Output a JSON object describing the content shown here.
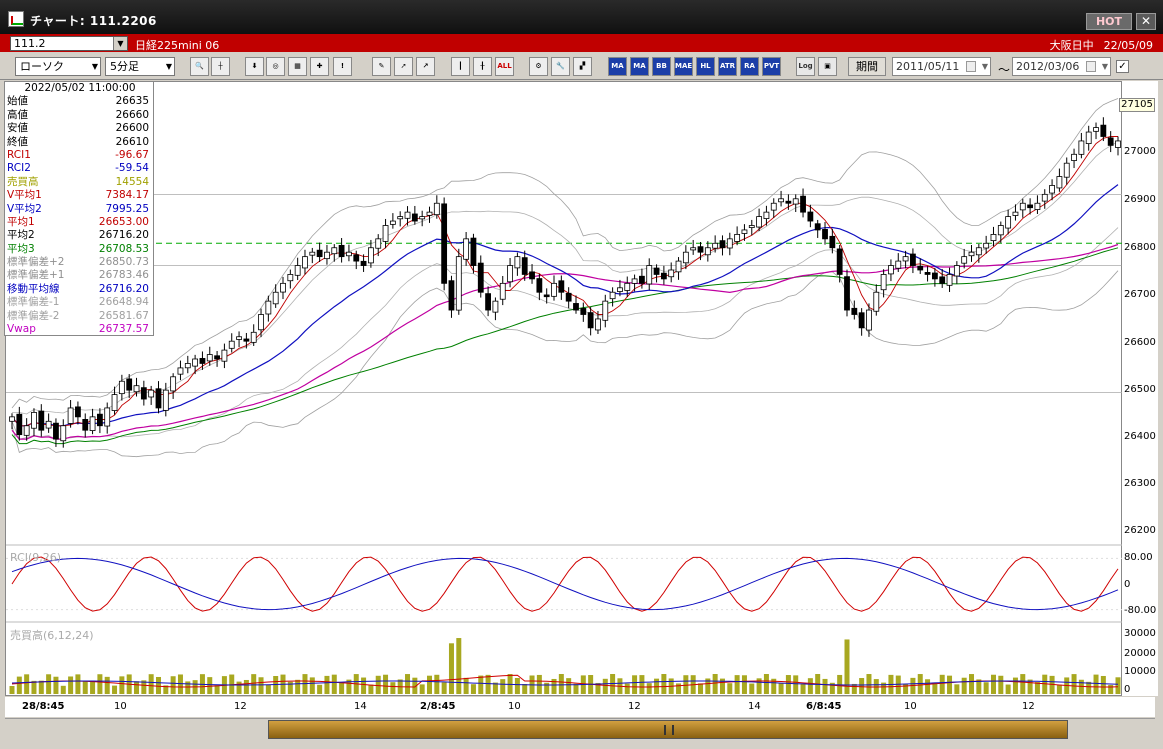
{
  "window": {
    "title": "チャート: 111.2206",
    "hot_label": "HOT",
    "close_label": "✕"
  },
  "symbol": {
    "code": "111.2",
    "name": "日経225mini 06",
    "market": "大阪日中",
    "date": "22/05/09"
  },
  "toolbar": {
    "chart_type": "ローソク",
    "interval": "5分足",
    "kikan_label": "期間",
    "date_from": "2011/05/11",
    "date_to": "2012/03/06",
    "tilde": "〜",
    "check": "✓",
    "buttons": [
      "search-icon",
      "crosshair-icon",
      "ruler-icon",
      "zoom-icon",
      "bar-icon",
      "scale-icon",
      "info-icon",
      "pencil-icon",
      "cursor-icon",
      "line-icon",
      "candle-icon",
      "hl-icon",
      "all-icon",
      "gear-icon",
      "wrench-icon",
      "color-icon",
      "MA",
      "BB",
      "MAE",
      "HL",
      "ATR",
      "RSI",
      "PVT",
      "Log",
      "print-icon"
    ],
    "text_buttons": {
      "all": "ALL",
      "ma": "MA",
      "bb": "BB",
      "mae": "MAE",
      "hl": "HL",
      "atr": "ATR",
      "ra": "RA",
      "pvt": "PVT",
      "log": "Log"
    }
  },
  "info": {
    "timestamp": "2022/05/02  11:00:00",
    "rows": [
      {
        "label": "始値",
        "value": "26635",
        "color": "#000000"
      },
      {
        "label": "高値",
        "value": "26660",
        "color": "#000000"
      },
      {
        "label": "安値",
        "value": "26600",
        "color": "#000000"
      },
      {
        "label": "終値",
        "value": "26610",
        "color": "#000000"
      },
      {
        "label": "RCI1",
        "value": "-96.67",
        "color": "#c00000"
      },
      {
        "label": "RCI2",
        "value": "-59.54",
        "color": "#0000c0"
      },
      {
        "label": "売買高",
        "value": "14554",
        "color": "#a0a000"
      },
      {
        "label": "V平均1",
        "value": "7384.17",
        "color": "#c00000"
      },
      {
        "label": "V平均2",
        "value": "7995.25",
        "color": "#0000c0"
      },
      {
        "label": "平均1",
        "value": "26653.00",
        "color": "#c00000"
      },
      {
        "label": "平均2",
        "value": "26716.20",
        "color": "#000000"
      },
      {
        "label": "平均3",
        "value": "26708.53",
        "color": "#008000"
      },
      {
        "label": "標準偏差+2",
        "value": "26850.73",
        "color": "#909090"
      },
      {
        "label": "標準偏差+1",
        "value": "26783.46",
        "color": "#909090"
      },
      {
        "label": "移動平均線",
        "value": "26716.20",
        "color": "#0000c0"
      },
      {
        "label": "標準偏差-1",
        "value": "26648.94",
        "color": "#a0a0a0"
      },
      {
        "label": "標準偏差-2",
        "value": "26581.67",
        "color": "#a0a0a0"
      },
      {
        "label": "Vwap",
        "value": "26737.57",
        "color": "#c000c0"
      }
    ]
  },
  "price_axis": {
    "labels": [
      "27000",
      "26900",
      "26800",
      "26700",
      "26600",
      "26500",
      "26400",
      "26300",
      "26200"
    ],
    "highlight": "27105"
  },
  "rci_panel": {
    "label": "RCI(9,26)",
    "labels": [
      "80.00",
      "0",
      "-80.00"
    ]
  },
  "vol_panel": {
    "label": "売買高(6,12,24)",
    "labels": [
      "30000",
      "20000",
      "10000",
      "0"
    ]
  },
  "time_axis": [
    {
      "t": "28/8:45",
      "bold": true
    },
    {
      "t": "10",
      "bold": false
    },
    {
      "t": "12",
      "bold": false
    },
    {
      "t": "14",
      "bold": false
    },
    {
      "t": "2/8:45",
      "bold": true
    },
    {
      "t": "10",
      "bold": false
    },
    {
      "t": "12",
      "bold": false
    },
    {
      "t": "14",
      "bold": false
    },
    {
      "t": "6/8:45",
      "bold": true
    },
    {
      "t": "10",
      "bold": false
    },
    {
      "t": "12",
      "bold": false
    }
  ],
  "chart_data": {
    "type": "candlestick",
    "ylim": [
      26150,
      27150
    ],
    "closes": [
      26420,
      26380,
      26400,
      26430,
      26390,
      26410,
      26370,
      26400,
      26440,
      26420,
      26390,
      26420,
      26400,
      26440,
      26470,
      26500,
      26480,
      26490,
      26460,
      26480,
      26440,
      26480,
      26510,
      26530,
      26540,
      26550,
      26540,
      26560,
      26550,
      26570,
      26590,
      26600,
      26590,
      26610,
      26650,
      26680,
      26700,
      26720,
      26740,
      26760,
      26780,
      26790,
      26780,
      26790,
      26800,
      26780,
      26790,
      26770,
      26760,
      26800,
      26820,
      26850,
      26860,
      26870,
      26880,
      26860,
      26870,
      26880,
      26900,
      26720,
      26660,
      26780,
      26820,
      26760,
      26700,
      26660,
      26680,
      26720,
      26760,
      26780,
      26740,
      26730,
      26700,
      26690,
      26720,
      26700,
      26680,
      26660,
      26650,
      26620,
      26640,
      26680,
      26700,
      26710,
      26720,
      26730,
      26720,
      26760,
      26740,
      26730,
      26750,
      26770,
      26790,
      26800,
      26790,
      26800,
      26810,
      26800,
      26820,
      26830,
      26840,
      26850,
      26870,
      26880,
      26900,
      26910,
      26900,
      26910,
      26880,
      26860,
      26840,
      26820,
      26800,
      26740,
      26660,
      26650,
      26620,
      26660,
      26700,
      26740,
      26760,
      26770,
      26780,
      26760,
      26750,
      26740,
      26730,
      26720,
      26740,
      26760,
      26780,
      26790,
      26800,
      26810,
      26830,
      26850,
      26870,
      26880,
      26900,
      26890,
      26900,
      26920,
      26940,
      26960,
      26990,
      27010,
      27040,
      27060,
      27070,
      27050,
      27030,
      27040
    ],
    "vol_note": "volume bars derived from series",
    "series": [
      {
        "name": "平均1",
        "color": "#c00000"
      },
      {
        "name": "移動平均線",
        "color": "#1010c0"
      },
      {
        "name": "平均3",
        "color": "#008000"
      },
      {
        "name": "Vwap",
        "color": "#c000a0"
      },
      {
        "name": "標準偏差",
        "color": "#909090"
      }
    ]
  }
}
